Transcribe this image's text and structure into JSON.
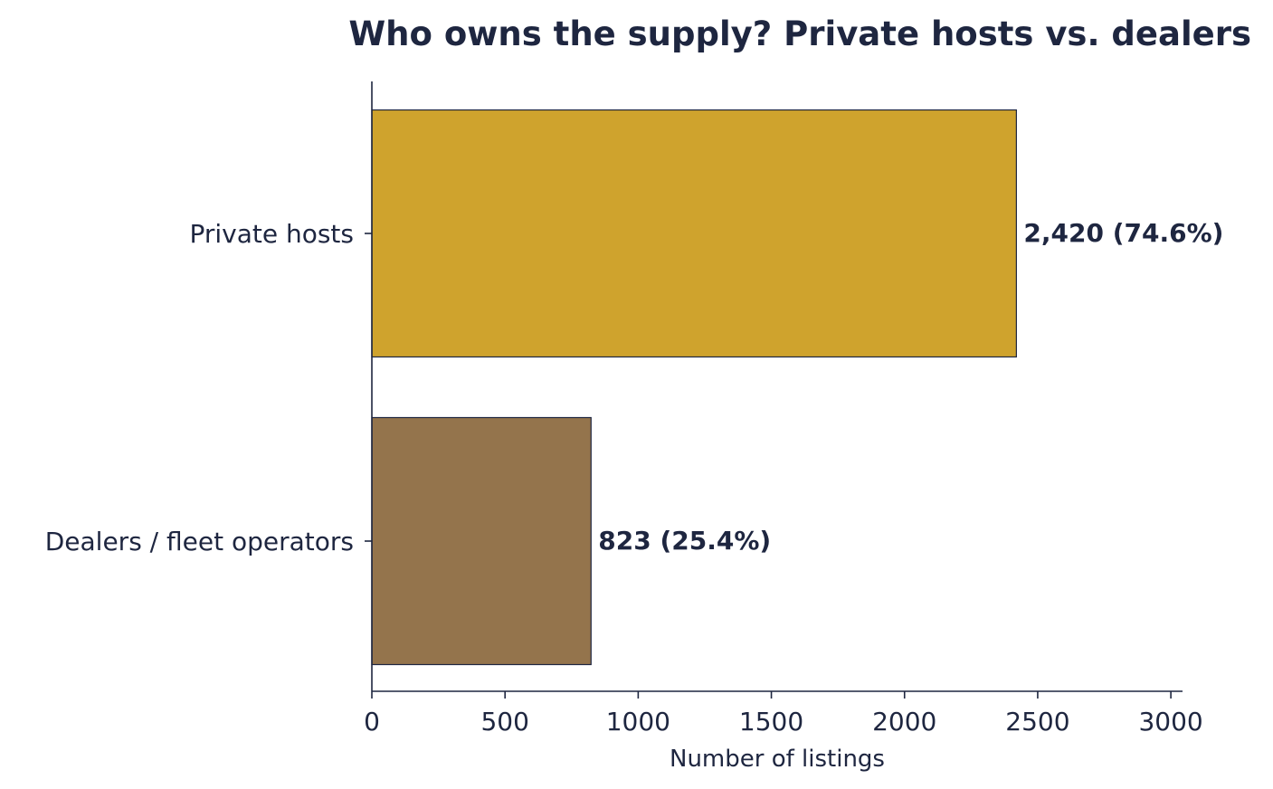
{
  "chart_data": {
    "type": "bar",
    "orientation": "horizontal",
    "title": "Who owns the supply? Private hosts vs. dealers",
    "xlabel": "Number of listings",
    "ylabel": "",
    "categories": [
      "Private hosts",
      "Dealers / fleet operators"
    ],
    "values": [
      2420,
      823
    ],
    "data_labels": [
      "2,420  (74.6%)",
      "823  (25.4%)"
    ],
    "xlim": [
      0,
      3020
    ],
    "xticks": [
      0,
      500,
      1000,
      1500,
      2000,
      2500,
      3000
    ],
    "xtick_labels": [
      "0",
      "500",
      "1000",
      "1500",
      "2000",
      "2500",
      "3000"
    ],
    "grid": false,
    "colors": [
      "#cfa32d",
      "#94744c"
    ],
    "axis_color": "#1e2640",
    "text_color": "#1e2640"
  }
}
